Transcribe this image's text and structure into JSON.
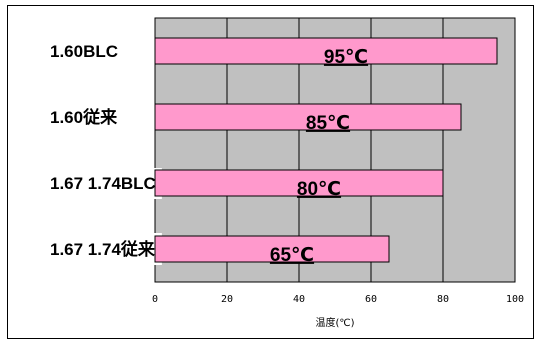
{
  "chart_data": {
    "type": "bar",
    "orientation": "horizontal",
    "categories": [
      "1.60BLC",
      "1.60従来",
      "1.67 1.74BLC",
      "1.67 1.74従来"
    ],
    "values": [
      95,
      85,
      80,
      65
    ],
    "data_labels": [
      "95℃",
      "85℃",
      "80℃",
      "65℃"
    ],
    "xlabel": "温度(℃)",
    "xlim": [
      0,
      100
    ],
    "xticks": [
      0,
      20,
      40,
      60,
      80,
      100
    ],
    "grid": true,
    "colors": {
      "bar_fill": "#ff99cc",
      "plot_background": "#c0c0c0",
      "bar_stroke": "#000000"
    }
  }
}
